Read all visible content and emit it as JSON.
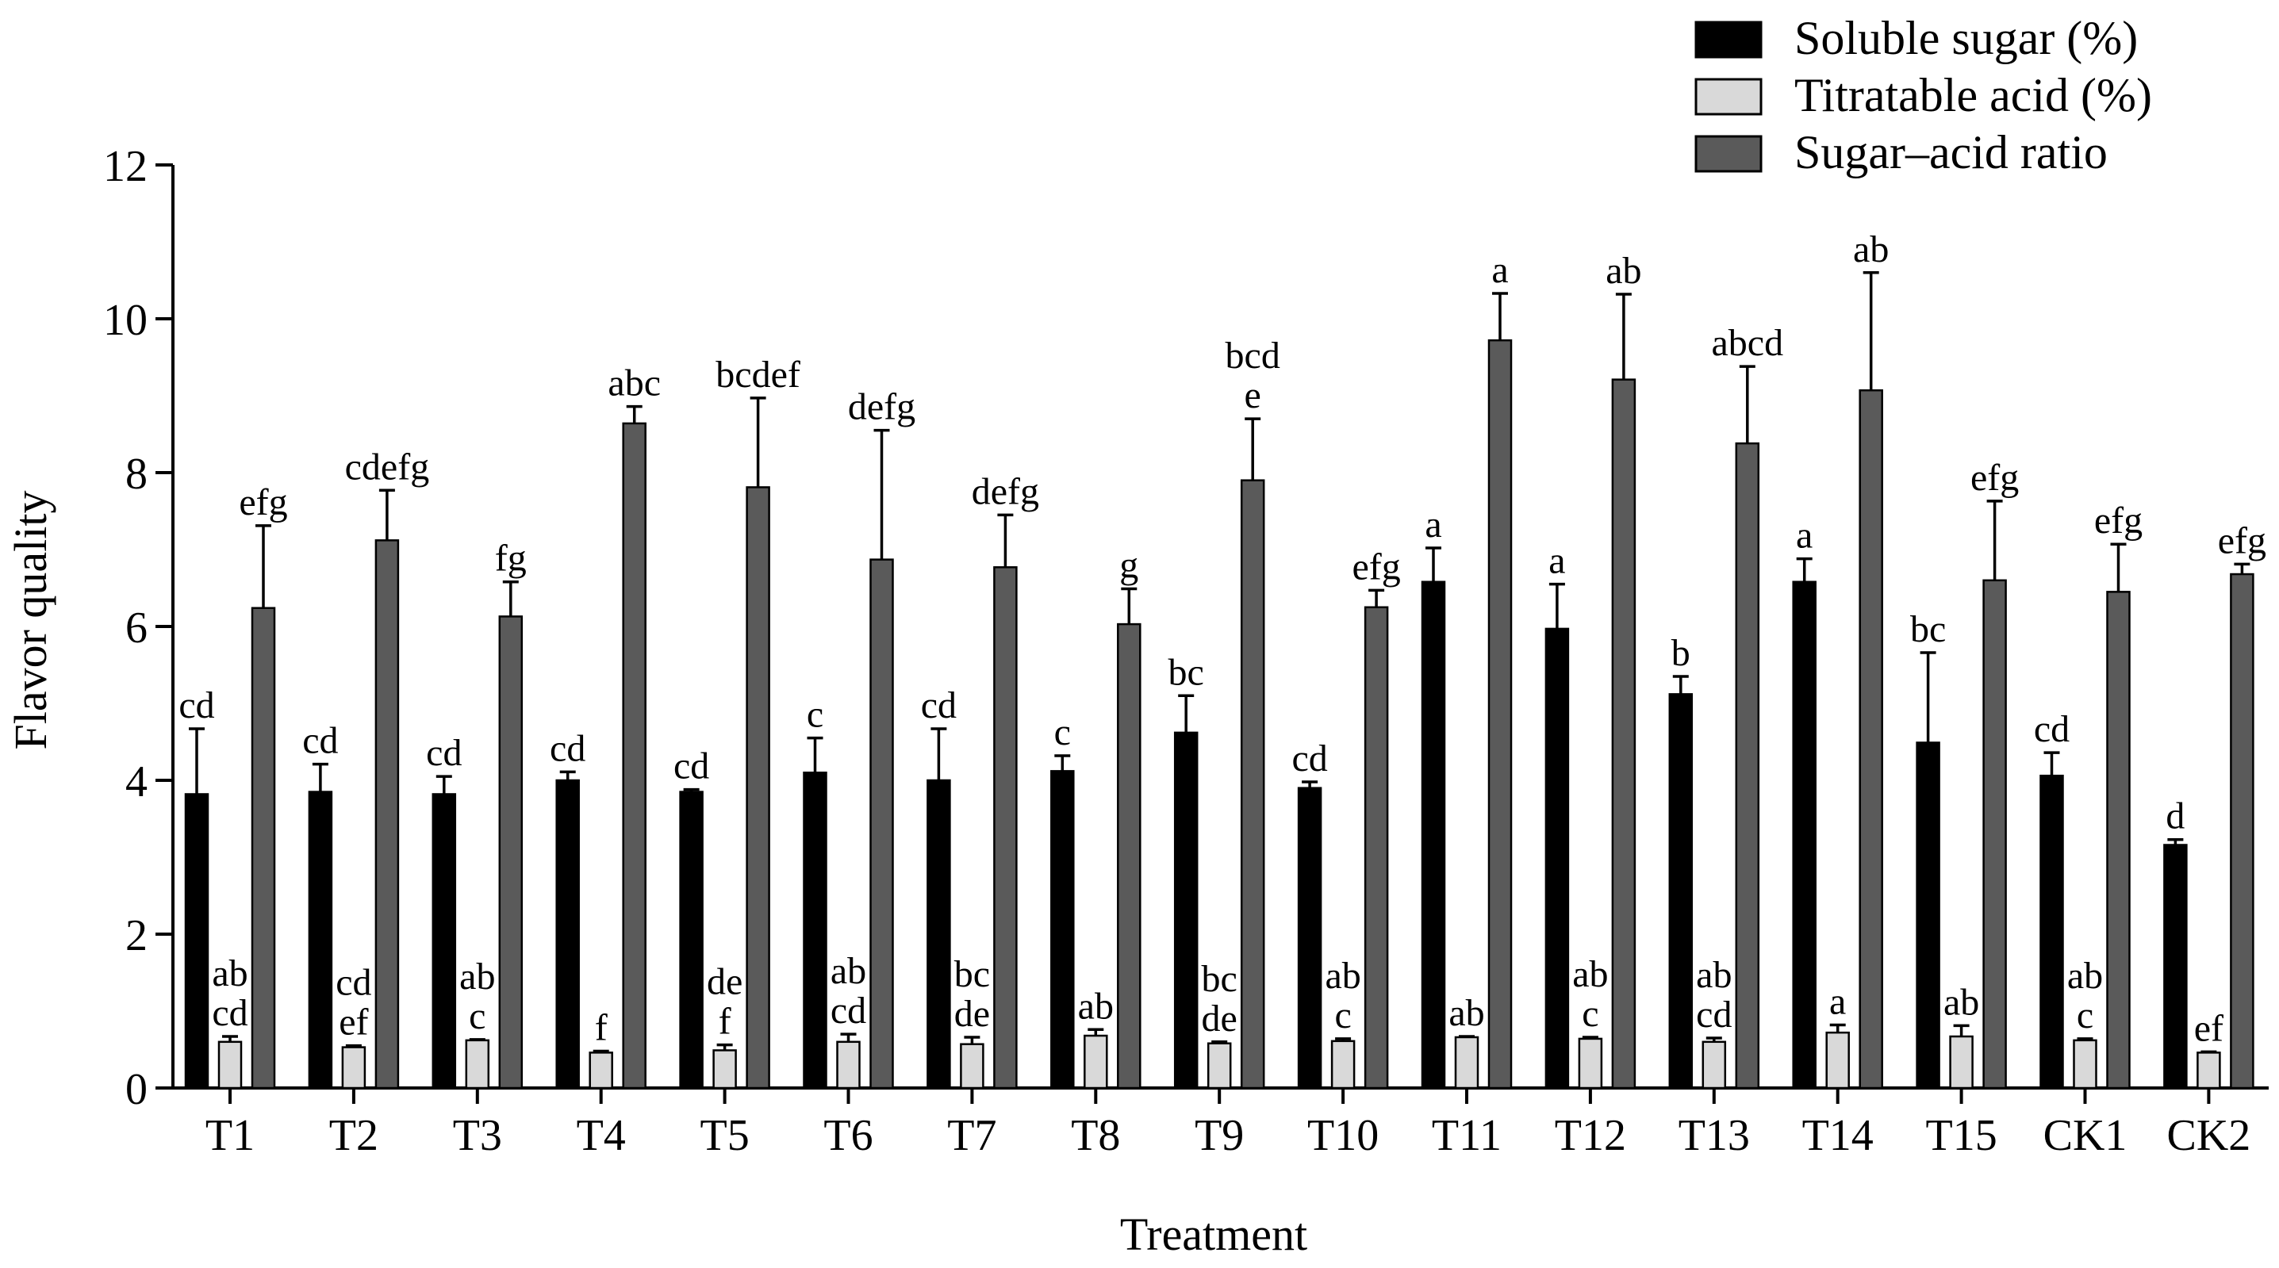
{
  "chart_data": {
    "type": "bar",
    "title": "",
    "xlabel": "Treatment",
    "ylabel": "Flavor quality",
    "ylim": [
      0,
      12
    ],
    "yticks": [
      0,
      2,
      4,
      6,
      8,
      10,
      12
    ],
    "legend_position": "top-right",
    "categories": [
      "T1",
      "T2",
      "T3",
      "T4",
      "T5",
      "T6",
      "T7",
      "T8",
      "T9",
      "T10",
      "T11",
      "T12",
      "T13",
      "T14",
      "T15",
      "CK1",
      "CK2"
    ],
    "series": [
      {
        "name": "Soluble sugar (%)",
        "color": "#000000",
        "values": [
          3.82,
          3.85,
          3.82,
          4.0,
          3.85,
          4.1,
          4.0,
          4.12,
          4.62,
          3.9,
          6.58,
          5.97,
          5.12,
          6.58,
          4.49,
          4.06,
          3.16
        ],
        "errors": [
          0.85,
          0.36,
          0.23,
          0.11,
          0.03,
          0.45,
          0.67,
          0.2,
          0.48,
          0.08,
          0.44,
          0.58,
          0.23,
          0.3,
          1.17,
          0.3,
          0.07
        ],
        "labels": [
          "cd",
          "cd",
          "cd",
          "cd",
          "cd",
          "c",
          "cd",
          "c",
          "bc",
          "cd",
          "a",
          "a",
          "b",
          "a",
          "bc",
          "cd",
          "d"
        ]
      },
      {
        "name": "Titratable acid (%)",
        "color": "#d9d9d9",
        "values": [
          0.6,
          0.53,
          0.62,
          0.46,
          0.49,
          0.6,
          0.57,
          0.68,
          0.58,
          0.61,
          0.66,
          0.64,
          0.6,
          0.72,
          0.67,
          0.62,
          0.46
        ],
        "errors": [
          0.07,
          0.02,
          0.01,
          0.02,
          0.07,
          0.1,
          0.09,
          0.08,
          0.02,
          0.03,
          0.01,
          0.02,
          0.05,
          0.1,
          0.14,
          0.02,
          0.01
        ],
        "labels": [
          "ab cd",
          "cd ef",
          "ab c",
          "f",
          "de f",
          "ab cd",
          "bc de",
          "ab",
          "bc de",
          "ab c",
          "ab",
          "ab c",
          "ab cd",
          "a",
          "ab",
          "ab c",
          "ef"
        ]
      },
      {
        "name": "Sugar–acid ratio",
        "color": "#5a5a5a",
        "values": [
          6.24,
          7.12,
          6.13,
          8.64,
          7.81,
          6.87,
          6.77,
          6.03,
          7.9,
          6.25,
          9.72,
          9.21,
          8.38,
          9.07,
          6.6,
          6.45,
          6.68
        ],
        "errors": [
          1.07,
          0.65,
          0.45,
          0.22,
          1.16,
          1.68,
          0.68,
          0.46,
          0.8,
          0.22,
          0.61,
          1.11,
          1.0,
          1.53,
          1.03,
          0.62,
          0.13
        ],
        "labels": [
          "efg",
          "cdefg",
          "fg",
          "abc",
          "bcdef",
          "defg",
          "defg",
          "g",
          "bcd e",
          "efg",
          "a",
          "ab",
          "abcd",
          "ab",
          "efg",
          "efg",
          "efg"
        ]
      }
    ]
  }
}
